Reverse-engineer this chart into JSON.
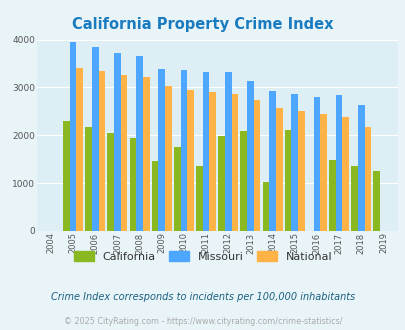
{
  "title": "California Property Crime Index",
  "years": [
    2004,
    2005,
    2006,
    2007,
    2008,
    2009,
    2010,
    2011,
    2012,
    2013,
    2014,
    2015,
    2016,
    2017,
    2018,
    2019
  ],
  "california": [
    null,
    2300,
    2175,
    2055,
    1950,
    1470,
    1750,
    1360,
    1980,
    2080,
    1020,
    2110,
    null,
    1480,
    1350,
    1250
  ],
  "missouri": [
    null,
    3950,
    3840,
    3720,
    3650,
    3380,
    3360,
    3320,
    3330,
    3130,
    2930,
    2870,
    2800,
    2850,
    2640,
    null
  ],
  "national": [
    null,
    3400,
    3350,
    3270,
    3210,
    3040,
    2950,
    2910,
    2870,
    2730,
    2580,
    2500,
    2450,
    2380,
    2170,
    null
  ],
  "california_color": "#8ab820",
  "missouri_color": "#4da6ff",
  "national_color": "#ffb347",
  "chart_bg_color": "#ddeef5",
  "fig_bottom_bg": "#ffffff",
  "fig_top_bg": "#e8f4f8",
  "ylim": [
    0,
    4000
  ],
  "yticks": [
    0,
    1000,
    2000,
    3000,
    4000
  ],
  "xlabel_note": "Crime Index corresponds to incidents per 100,000 inhabitants",
  "footer": "© 2025 CityRating.com - https://www.cityrating.com/crime-statistics/",
  "legend_labels": [
    "California",
    "Missouri",
    "National"
  ],
  "title_color": "#1a7bbf",
  "note_color": "#1a6080",
  "footer_color": "#aaaaaa"
}
